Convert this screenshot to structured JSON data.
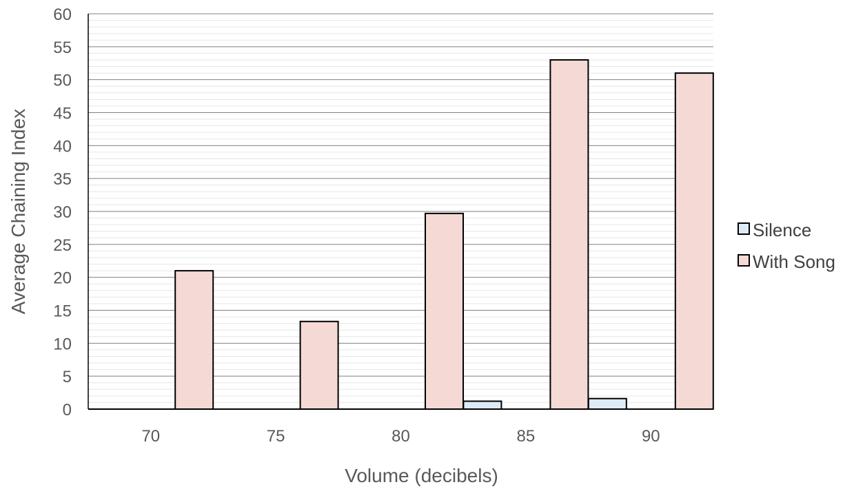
{
  "chart_data": {
    "type": "bar",
    "title": "",
    "xlabel": "Volume (decibels)",
    "ylabel": "Average Chaining Index",
    "categories": [
      "70",
      "75",
      "80",
      "85",
      "90"
    ],
    "series": [
      {
        "name": "Silence",
        "values": [
          0,
          0,
          0,
          1.2,
          1.6
        ],
        "color": "#deebf7"
      },
      {
        "name": "With Song",
        "values": [
          21,
          13.3,
          29.7,
          53,
          51
        ],
        "color": "#f4d9d5"
      }
    ],
    "ylim": [
      0,
      60
    ],
    "yticks": [
      "0",
      "5",
      "10",
      "15",
      "20",
      "25",
      "30",
      "35",
      "40",
      "45",
      "50",
      "55",
      "60"
    ],
    "major_grid": true,
    "minor_grid": true,
    "legend": "right"
  }
}
